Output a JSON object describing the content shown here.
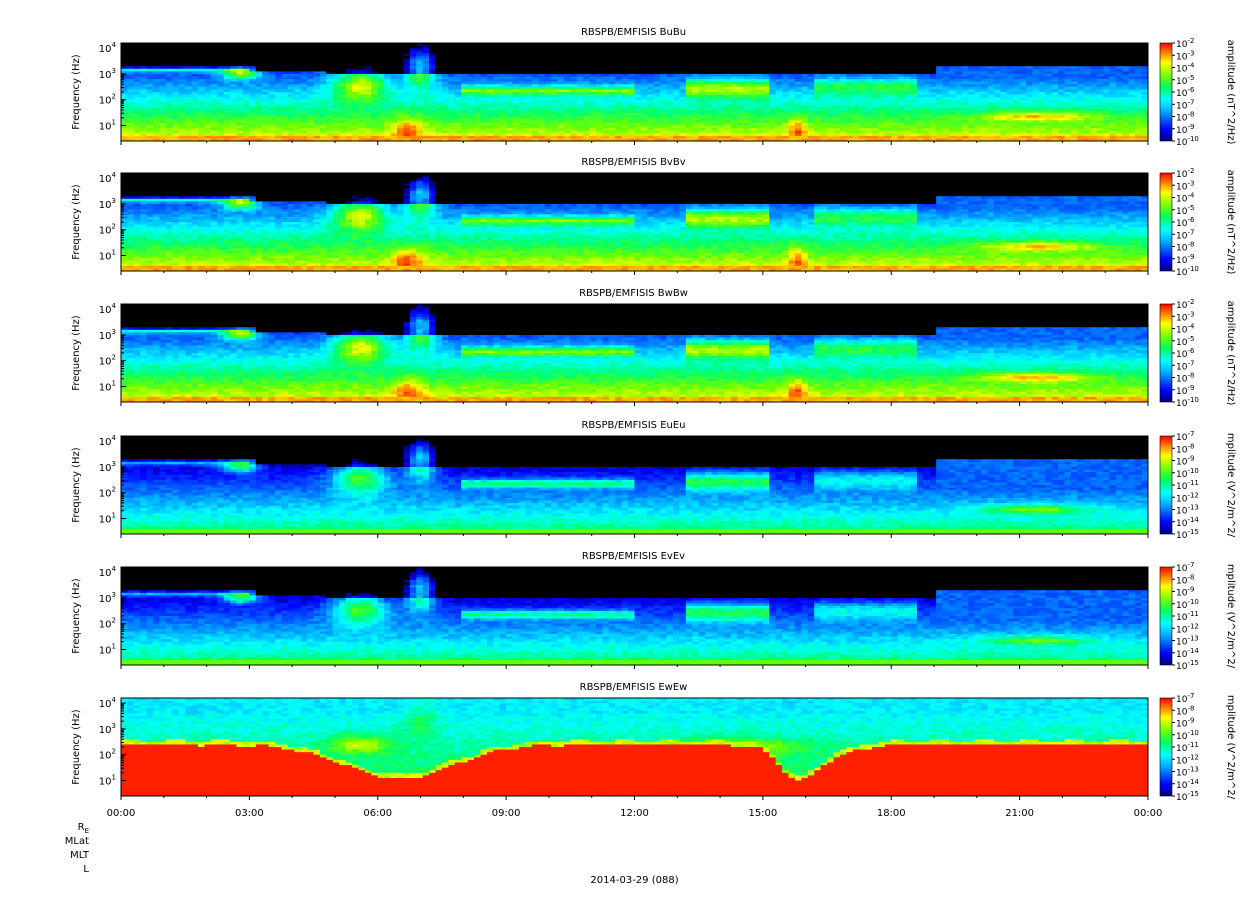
{
  "chart_data": {
    "type": "heatmap",
    "layout": "stacked-panels",
    "shared_x": {
      "ticks": [
        "00:00",
        "03:00",
        "06:00",
        "09:00",
        "12:00",
        "15:00",
        "18:00",
        "21:00",
        "00:00"
      ],
      "range_hours": [
        0,
        24
      ],
      "date_label": "2014-03-29 (088)",
      "ephemeris_rows": [
        "R",
        "MLat",
        "MLT",
        "L"
      ],
      "ephemeris_subscript": "E"
    },
    "panels": [
      {
        "title": "RBSPB/EMFISIS  BuBu",
        "ylabel": "Frequency (Hz)",
        "yscale": "log",
        "yticks": [
          {
            "base": "10",
            "exp": "1"
          },
          {
            "base": "10",
            "exp": "2"
          },
          {
            "base": "10",
            "exp": "3"
          },
          {
            "base": "10",
            "exp": "4"
          }
        ],
        "colorbar_label": "amplitude (nT^2/Hz)",
        "colorbar_exps": [
          "-2",
          "-3",
          "-4",
          "-5",
          "-6",
          "-7",
          "-8",
          "-9",
          "-10"
        ],
        "colorscale": "rainbow",
        "field": "B"
      },
      {
        "title": "RBSPB/EMFISIS  BvBv",
        "ylabel": "Frequency (Hz)",
        "yscale": "log",
        "yticks": [
          {
            "base": "10",
            "exp": "1"
          },
          {
            "base": "10",
            "exp": "2"
          },
          {
            "base": "10",
            "exp": "3"
          },
          {
            "base": "10",
            "exp": "4"
          }
        ],
        "colorbar_label": "amplitude (nT^2/Hz)",
        "colorbar_exps": [
          "-2",
          "-3",
          "-4",
          "-5",
          "-6",
          "-7",
          "-8",
          "-9",
          "-10"
        ],
        "colorscale": "rainbow",
        "field": "B"
      },
      {
        "title": "RBSPB/EMFISIS  BwBw",
        "ylabel": "Frequency (Hz)",
        "yscale": "log",
        "yticks": [
          {
            "base": "10",
            "exp": "1"
          },
          {
            "base": "10",
            "exp": "2"
          },
          {
            "base": "10",
            "exp": "3"
          },
          {
            "base": "10",
            "exp": "4"
          }
        ],
        "colorbar_label": "amplitude (nT^2/Hz)",
        "colorbar_exps": [
          "-2",
          "-3",
          "-4",
          "-5",
          "-6",
          "-7",
          "-8",
          "-9",
          "-10"
        ],
        "colorscale": "rainbow",
        "field": "B"
      },
      {
        "title": "RBSPB/EMFISIS  EuEu",
        "ylabel": "Frequency (Hz)",
        "yscale": "log",
        "yticks": [
          {
            "base": "10",
            "exp": "1"
          },
          {
            "base": "10",
            "exp": "2"
          },
          {
            "base": "10",
            "exp": "3"
          },
          {
            "base": "10",
            "exp": "4"
          }
        ],
        "colorbar_label": "mplitude (V^2/m^2/",
        "colorbar_exps": [
          "-7",
          "-8",
          "-9",
          "-10",
          "-11",
          "-12",
          "-13",
          "-14",
          "-15"
        ],
        "colorscale": "rainbow",
        "field": "E"
      },
      {
        "title": "RBSPB/EMFISIS  EvEv",
        "ylabel": "Frequency (Hz)",
        "yscale": "log",
        "yticks": [
          {
            "base": "10",
            "exp": "1"
          },
          {
            "base": "10",
            "exp": "2"
          },
          {
            "base": "10",
            "exp": "3"
          },
          {
            "base": "10",
            "exp": "4"
          }
        ],
        "colorbar_label": "mplitude (V^2/m^2/",
        "colorbar_exps": [
          "-7",
          "-8",
          "-9",
          "-10",
          "-11",
          "-12",
          "-13",
          "-14",
          "-15"
        ],
        "colorscale": "rainbow",
        "field": "E"
      },
      {
        "title": "RBSPB/EMFISIS  EwEw",
        "ylabel": "Frequency (Hz)",
        "yscale": "log",
        "yticks": [
          {
            "base": "10",
            "exp": "1"
          },
          {
            "base": "10",
            "exp": "2"
          },
          {
            "base": "10",
            "exp": "3"
          },
          {
            "base": "10",
            "exp": "4"
          }
        ],
        "colorbar_label": "mplitude (V^2/m^2/",
        "colorbar_exps": [
          "-7",
          "-8",
          "-9",
          "-10",
          "-11",
          "-12",
          "-13",
          "-14",
          "-15"
        ],
        "colorscale": "rainbow",
        "field": "Ew"
      }
    ]
  },
  "colors": {
    "background_black": "#000000",
    "scale": [
      "#0000a0",
      "#0000ff",
      "#0080ff",
      "#00ffff",
      "#00ff80",
      "#00e000",
      "#80ff00",
      "#ffff00",
      "#ff8000",
      "#ff0000"
    ]
  }
}
